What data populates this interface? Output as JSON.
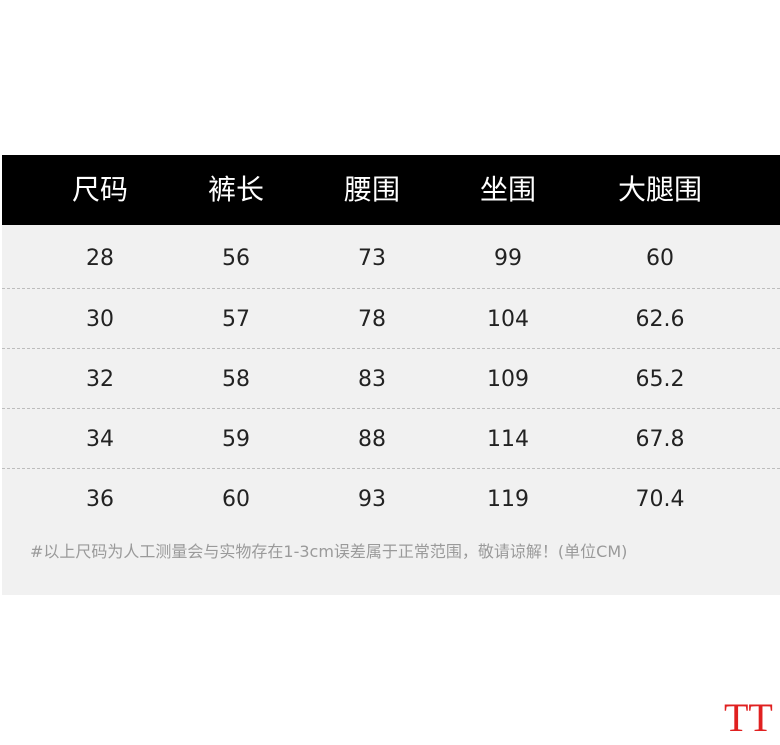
{
  "table": {
    "header": [
      "尺码",
      "裤长",
      "腰围",
      "坐围",
      "大腿围"
    ],
    "rows": [
      [
        "28",
        "56",
        "73",
        "99",
        "60"
      ],
      [
        "30",
        "57",
        "78",
        "104",
        "62.6"
      ],
      [
        "32",
        "58",
        "83",
        "109",
        "65.2"
      ],
      [
        "34",
        "59",
        "88",
        "114",
        "67.8"
      ],
      [
        "36",
        "60",
        "93",
        "119",
        "70.4"
      ]
    ],
    "note": "#以上尺码为人工测量会与实物存在1-3cm误差属于正常范围，敬请谅解！(单位CM)"
  },
  "watermark": "TT"
}
